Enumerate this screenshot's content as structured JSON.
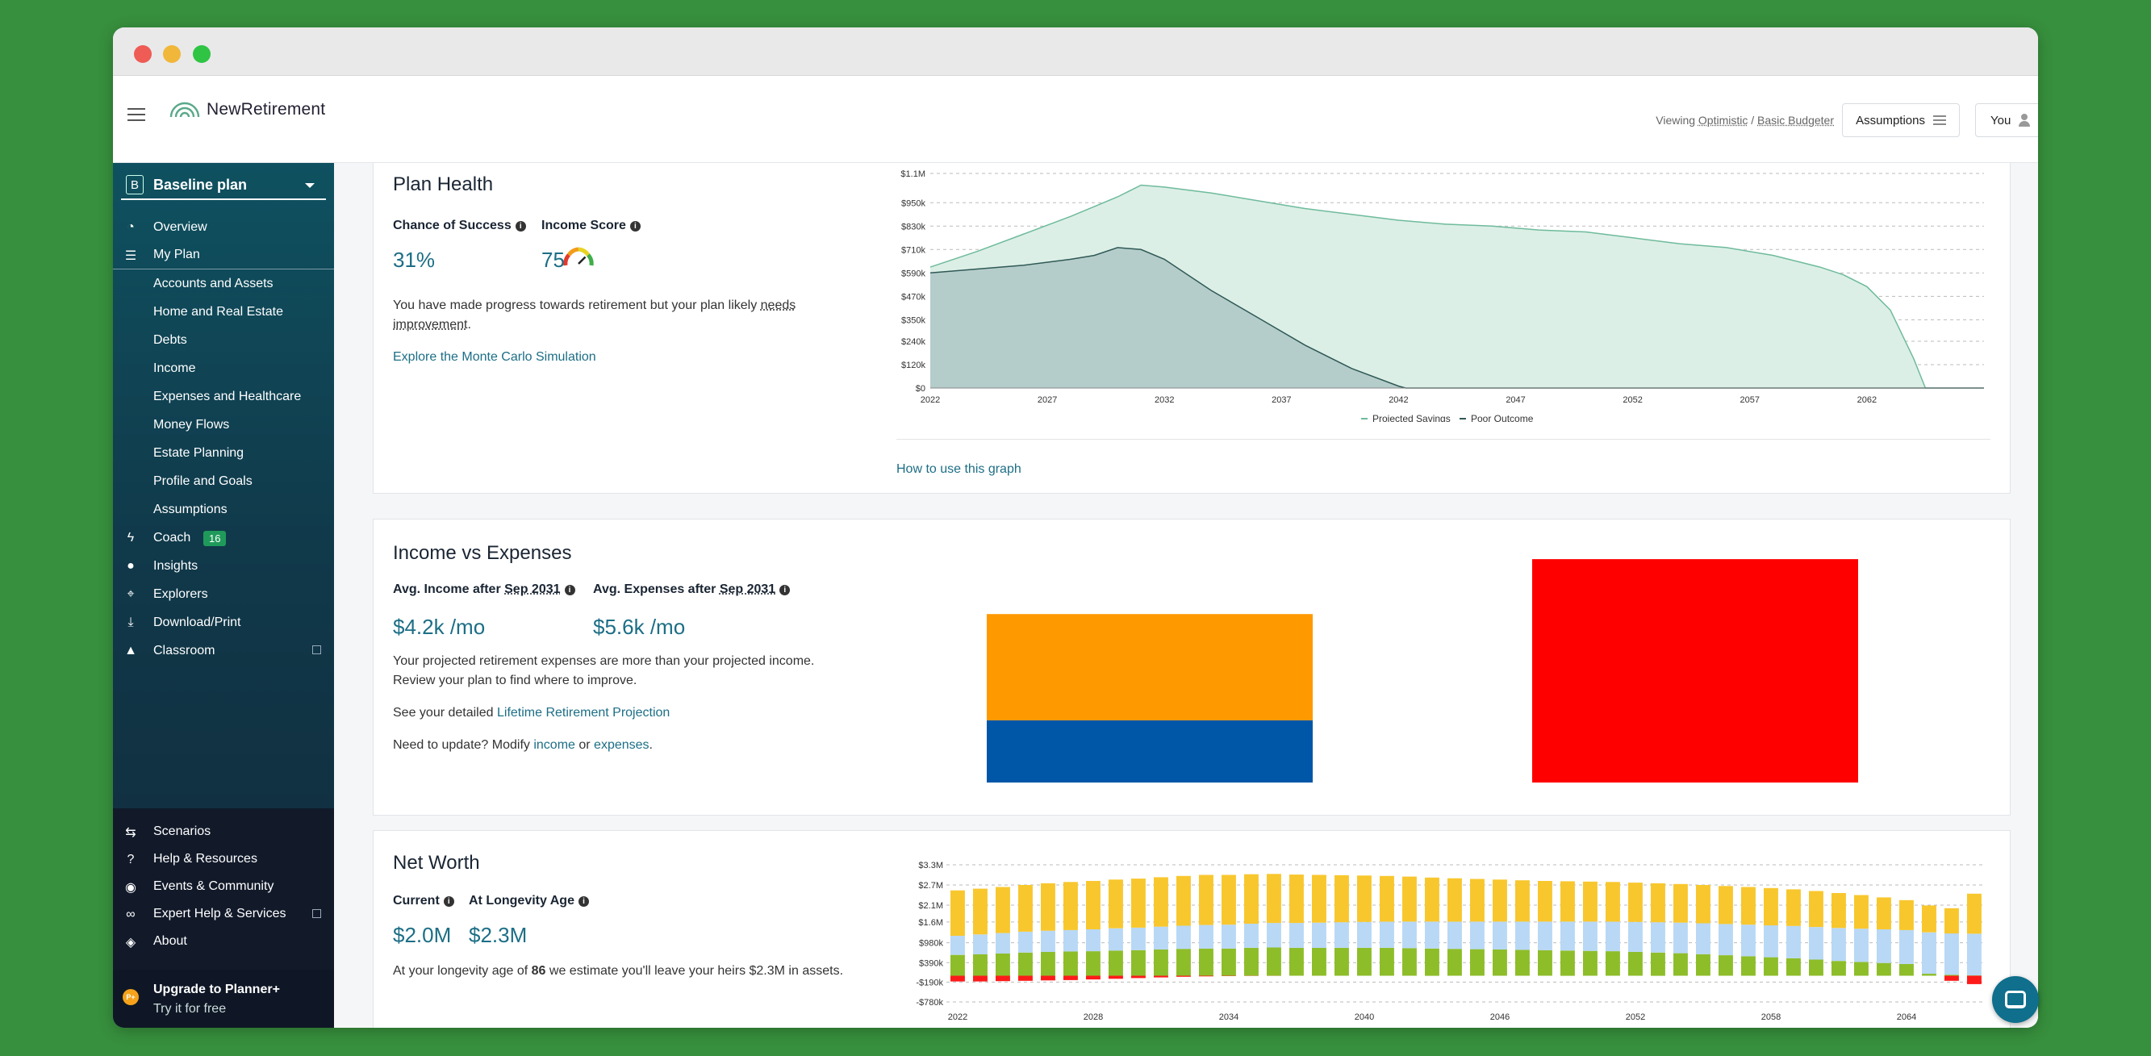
{
  "app": {
    "brand": "NewRetirement"
  },
  "header": {
    "viewing_prefix": "Viewing",
    "scenario": "Optimistic",
    "separator": "/",
    "profile": "Basic Budgeter",
    "assumptions_label": "Assumptions",
    "user_label": "You"
  },
  "sidebar": {
    "plan_badge": "B",
    "plan_name": "Baseline plan",
    "items": [
      {
        "label": "Overview",
        "icon": "dashboard-icon"
      },
      {
        "label": "My Plan",
        "icon": "list-icon"
      },
      {
        "label": "Accounts and Assets"
      },
      {
        "label": "Home and Real Estate"
      },
      {
        "label": "Debts"
      },
      {
        "label": "Income"
      },
      {
        "label": "Expenses and Healthcare"
      },
      {
        "label": "Money Flows"
      },
      {
        "label": "Estate Planning"
      },
      {
        "label": "Profile and Goals"
      },
      {
        "label": "Assumptions"
      },
      {
        "label": "Coach",
        "icon": "bolt-icon",
        "badge": "16"
      },
      {
        "label": "Insights",
        "icon": "lightbulb-icon"
      },
      {
        "label": "Explorers",
        "icon": "telescope-icon"
      },
      {
        "label": "Download/Print",
        "icon": "download-icon"
      },
      {
        "label": "Classroom",
        "icon": "graduation-cap-icon"
      }
    ],
    "bottom_items": [
      {
        "label": "Scenarios",
        "icon": "signpost-icon"
      },
      {
        "label": "Help & Resources",
        "icon": "question-icon"
      },
      {
        "label": "Events & Community",
        "icon": "chat-icon"
      },
      {
        "label": "Expert Help & Services",
        "icon": "glasses-icon"
      },
      {
        "label": "About",
        "icon": "compass-icon"
      }
    ],
    "upgrade_title": "Upgrade to Planner+",
    "upgrade_sub": "Try it for free",
    "upgrade_coin": "P+"
  },
  "plan_health": {
    "title": "Plan Health",
    "success_label": "Chance of Success",
    "success_value": "31%",
    "income_label": "Income Score",
    "income_value": "75",
    "gauge_fraction": 0.75,
    "description_prefix": "You have made progress towards retirement but your plan likely ",
    "description_link": "needs improvement",
    "description_suffix": ".",
    "monte_carlo_link": "Explore the Monte Carlo Simulation",
    "how_to_link": "How to use this graph"
  },
  "income_expenses": {
    "title": "Income vs Expenses",
    "income_label_prefix": "Avg. Income after ",
    "income_label_date": "Sep 2031",
    "expenses_label_prefix": "Avg. Expenses after ",
    "expenses_label_date": "Sep 2031",
    "income_value": "$4.2k /mo",
    "expenses_value": "$5.6k /mo",
    "desc_line1": "Your projected retirement expenses are more than your projected income.",
    "desc_line2": "Review your plan to find where to improve.",
    "see_prefix": "See your detailed ",
    "see_link": "Lifetime Retirement Projection",
    "update_prefix": "Need to update? Modify ",
    "update_link1": "income",
    "update_or": " or ",
    "update_link2": "expenses",
    "update_suffix": "."
  },
  "net_worth": {
    "title": "Net Worth",
    "current_label": "Current",
    "longevity_label": "At Longevity Age",
    "current_value": "$2.0M",
    "longevity_value": "$2.3M",
    "desc_prefix": "At your longevity age of ",
    "desc_age": "86",
    "desc_suffix": " we estimate you'll leave your heirs $2.3M in assets."
  },
  "chart_data": [
    {
      "type": "area",
      "ylim": [
        0,
        1100000
      ],
      "y_ticks": [
        "$0",
        "$120k",
        "$240k",
        "$350k",
        "$470k",
        "$590k",
        "$710k",
        "$830k",
        "$950k",
        "$1.1M"
      ],
      "y_tick_values": [
        0,
        120000,
        240000,
        350000,
        470000,
        590000,
        710000,
        830000,
        950000,
        1100000
      ],
      "x_ticks": [
        "2022",
        "2027",
        "2032",
        "2037",
        "2042",
        "2047",
        "2052",
        "2057",
        "2062"
      ],
      "legend_position": "bottom",
      "grid": true,
      "series": [
        {
          "name": "Projected Savings",
          "color": "#7cc4a8",
          "points": [
            [
              2022,
              620000
            ],
            [
              2024,
              700000
            ],
            [
              2026,
              790000
            ],
            [
              2028,
              880000
            ],
            [
              2030,
              980000
            ],
            [
              2031,
              1040000
            ],
            [
              2032,
              1030000
            ],
            [
              2034,
              1000000
            ],
            [
              2036,
              960000
            ],
            [
              2038,
              920000
            ],
            [
              2040,
              890000
            ],
            [
              2042,
              860000
            ],
            [
              2044,
              840000
            ],
            [
              2046,
              830000
            ],
            [
              2048,
              810000
            ],
            [
              2050,
              800000
            ],
            [
              2052,
              770000
            ],
            [
              2054,
              740000
            ],
            [
              2056,
              720000
            ],
            [
              2058,
              680000
            ],
            [
              2060,
              620000
            ],
            [
              2061,
              580000
            ],
            [
              2062,
              520000
            ],
            [
              2063,
              400000
            ],
            [
              2064,
              150000
            ],
            [
              2064.5,
              0
            ],
            [
              2067,
              0
            ]
          ]
        },
        {
          "name": "Poor Outcome",
          "color": "#3d6b67",
          "points": [
            [
              2022,
              590000
            ],
            [
              2024,
              610000
            ],
            [
              2026,
              630000
            ],
            [
              2028,
              660000
            ],
            [
              2029,
              680000
            ],
            [
              2030,
              720000
            ],
            [
              2031,
              710000
            ],
            [
              2032,
              660000
            ],
            [
              2033,
              580000
            ],
            [
              2034,
              500000
            ],
            [
              2036,
              360000
            ],
            [
              2038,
              220000
            ],
            [
              2040,
              100000
            ],
            [
              2042,
              10000
            ],
            [
              2042.3,
              0
            ],
            [
              2067,
              0
            ]
          ]
        }
      ]
    },
    {
      "type": "bar",
      "series": [
        {
          "name": "Income",
          "segments": [
            {
              "value": 2.9,
              "color": "#ff9900"
            },
            {
              "value": 1.7,
              "color": "#0057a8"
            }
          ]
        },
        {
          "name": "Expenses",
          "segments": [
            {
              "value": 6.1,
              "color": "#ff0000"
            }
          ]
        }
      ]
    },
    {
      "type": "bar",
      "stacked": true,
      "ylim": [
        -780000,
        3300000
      ],
      "y_ticks": [
        "$3.3M",
        "$2.7M",
        "$2.1M",
        "$1.6M",
        "$980k",
        "$390k",
        "-$190k",
        "-$780k"
      ],
      "y_tick_values": [
        3300000,
        2700000,
        2100000,
        1600000,
        980000,
        390000,
        -190000,
        -780000
      ],
      "x_ticks": [
        "2022",
        "2028",
        "2034",
        "2040",
        "2046",
        "2052",
        "2058",
        "2064"
      ],
      "x_tick_values": [
        2022,
        2028,
        2034,
        2040,
        2046,
        2052,
        2058,
        2064
      ],
      "x_start": 2022,
      "grid": true,
      "colors": {
        "green": "#8ebd2a",
        "blue": "#b8d8f5",
        "yellow": "#f8c72e",
        "red": "#ff1a1a"
      },
      "green": [
        620,
        640,
        660,
        690,
        710,
        720,
        730,
        750,
        760,
        780,
        800,
        810,
        810,
        830,
        840,
        830,
        830,
        830,
        830,
        830,
        820,
        810,
        800,
        790,
        780,
        770,
        760,
        750,
        740,
        730,
        710,
        690,
        670,
        640,
        610,
        580,
        550,
        520,
        480,
        440,
        410,
        380,
        350,
        60,
        30,
        10
      ],
      "blue": [
        570,
        590,
        610,
        620,
        630,
        640,
        650,
        660,
        670,
        680,
        690,
        700,
        710,
        720,
        730,
        740,
        750,
        760,
        770,
        780,
        790,
        800,
        810,
        820,
        830,
        840,
        850,
        860,
        870,
        880,
        890,
        900,
        910,
        920,
        930,
        940,
        950,
        960,
        970,
        980,
        990,
        1000,
        1010,
        1230,
        1230,
        1240
      ],
      "yellow": [
        1350,
        1360,
        1370,
        1390,
        1410,
        1430,
        1440,
        1450,
        1460,
        1470,
        1480,
        1490,
        1480,
        1470,
        1460,
        1440,
        1420,
        1400,
        1380,
        1360,
        1340,
        1310,
        1290,
        1270,
        1250,
        1230,
        1210,
        1200,
        1190,
        1180,
        1170,
        1160,
        1150,
        1140,
        1130,
        1120,
        1110,
        1090,
        1070,
        1040,
        1000,
        950,
        890,
        800,
        750,
        1190
      ],
      "red": [
        -170,
        -170,
        -160,
        -150,
        -140,
        -130,
        -110,
        -90,
        -70,
        -50,
        -30,
        -20,
        -10,
        -5,
        -2,
        0,
        0,
        0,
        0,
        0,
        0,
        0,
        0,
        0,
        0,
        0,
        0,
        0,
        0,
        0,
        0,
        0,
        0,
        0,
        0,
        0,
        0,
        0,
        0,
        0,
        0,
        0,
        0,
        0,
        -150,
        -250
      ]
    }
  ]
}
